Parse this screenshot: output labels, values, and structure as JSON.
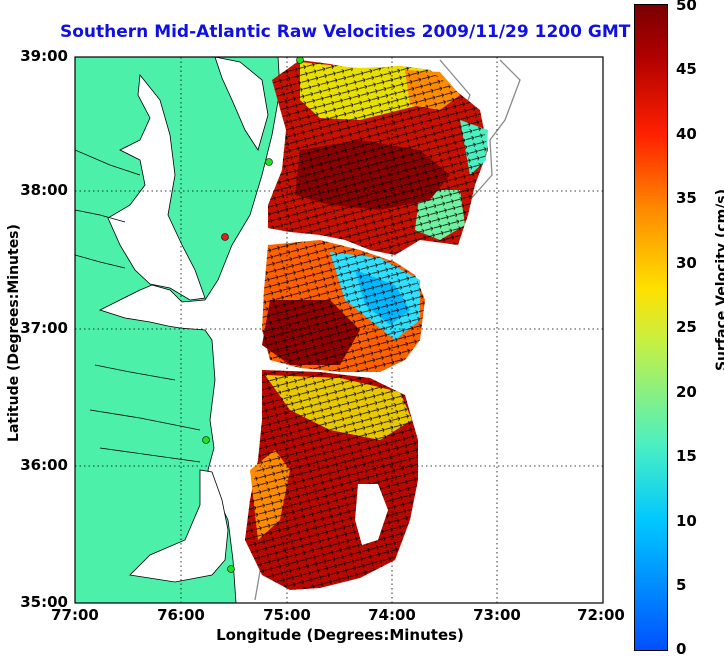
{
  "title": "Southern Mid-Atlantic Raw Velocities 2009/11/29 1200 GMT",
  "x_axis": {
    "label": "Longitude (Degrees:Minutes)",
    "ticks": [
      "77:00",
      "76:00",
      "75:00",
      "74:00",
      "73:00",
      "72:00"
    ]
  },
  "y_axis": {
    "label": "Latitude (Degrees:Minutes)",
    "ticks": [
      "39:00",
      "38:00",
      "37:00",
      "36:00",
      "35:00"
    ]
  },
  "colorbar": {
    "label": "Surface Velocity (cm/s)",
    "ticks": [
      "50",
      "45",
      "40",
      "35",
      "30",
      "25",
      "20",
      "15",
      "10",
      "5",
      "0"
    ]
  },
  "colors": {
    "land": "#4cf0a8",
    "title": "#1010e0"
  }
}
